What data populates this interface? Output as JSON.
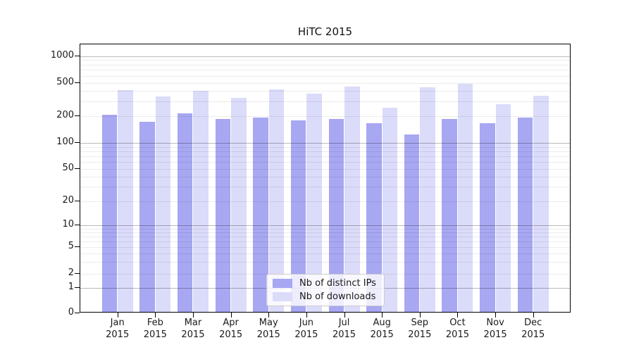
{
  "title": "HiTC 2015",
  "chart_data": {
    "type": "bar",
    "title": "HiTC 2015",
    "categories": [
      "Jan 2015",
      "Feb 2015",
      "Mar 2015",
      "Apr 2015",
      "May 2015",
      "Jun 2015",
      "Jul 2015",
      "Aug 2015",
      "Sep 2015",
      "Oct 2015",
      "Nov 2015",
      "Dec 2015"
    ],
    "series": [
      {
        "name": "Nb of distinct IPs",
        "color": "#a7a7f2",
        "values": [
          200,
          166,
          205,
          177,
          184,
          171,
          178,
          160,
          120,
          178,
          159,
          184
        ]
      },
      {
        "name": "Nb of downloads",
        "color": "#dbdbfa",
        "values": [
          395,
          333,
          390,
          316,
          405,
          358,
          433,
          243,
          424,
          468,
          265,
          335
        ]
      }
    ],
    "xlabel": "",
    "ylabel": "",
    "yscale": "symlog",
    "ytick_labels": [
      "0",
      "1",
      "2",
      "5",
      "10",
      "20",
      "50",
      "100",
      "200",
      "500",
      "1000"
    ],
    "ylim": [
      0,
      1350
    ],
    "grid": true,
    "grid_over_bars": true,
    "legend_position": "lower center",
    "background_color": "#ffffff",
    "axis_color": "#000000"
  }
}
